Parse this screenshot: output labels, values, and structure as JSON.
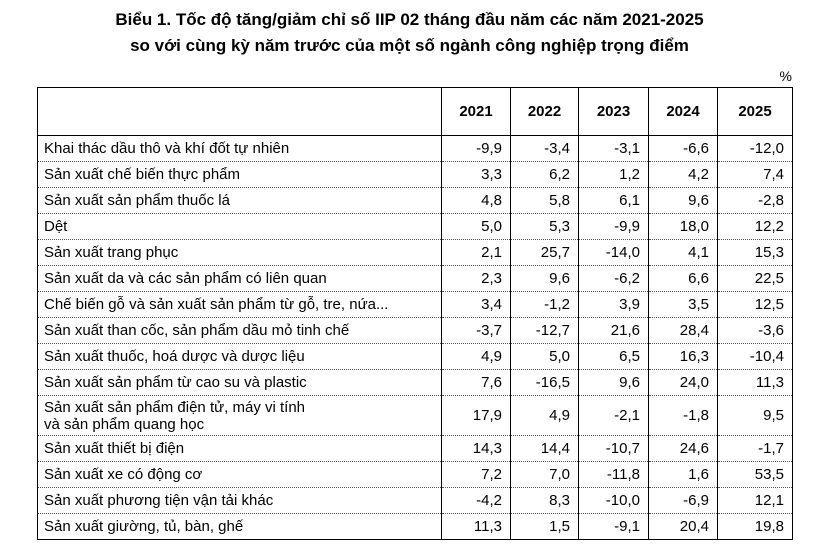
{
  "header": {
    "title": [
      "Biểu 1. Tốc độ tăng/giảm chỉ số IIP 02 tháng đầu năm các năm 2021-2025",
      "so với cùng kỳ năm trước của một số ngành công nghiệp trọng điểm"
    ],
    "unit": "%"
  },
  "table": {
    "columns": [
      "2021",
      "2022",
      "2023",
      "2024",
      "2025"
    ],
    "rows": [
      [
        "Khai thác dầu thô và khí đốt tự nhiên",
        "-9,9",
        "-3,4",
        "-3,1",
        "-6,6",
        "-12,0"
      ],
      [
        "Sản xuất chế biến thực phẩm",
        "3,3",
        "6,2",
        "1,2",
        "4,2",
        "7,4"
      ],
      [
        "Sản xuất sản phẩm thuốc lá",
        "4,8",
        "5,8",
        "6,1",
        "9,6",
        "-2,8"
      ],
      [
        "Dệt",
        "5,0",
        "5,3",
        "-9,9",
        "18,0",
        "12,2"
      ],
      [
        "Sản xuất trang phục",
        "2,1",
        "25,7",
        "-14,0",
        "4,1",
        "15,3"
      ],
      [
        "Sản xuất da và các sản phẩm có liên quan",
        "2,3",
        "9,6",
        "-6,2",
        "6,6",
        "22,5"
      ],
      [
        "Chế biến gỗ và sản xuất sản phẩm từ gỗ, tre, nứa...",
        "3,4",
        "-1,2",
        "3,9",
        "3,5",
        "12,5"
      ],
      [
        "Sản xuất than cốc, sản phẩm dầu mỏ tinh chế",
        "-3,7",
        "-12,7",
        "21,6",
        "28,4",
        "-3,6"
      ],
      [
        "Sản xuất thuốc, hoá dược và dược liệu",
        "4,9",
        "5,0",
        "6,5",
        "16,3",
        "-10,4"
      ],
      [
        "Sản xuất sản phẩm từ cao su và plastic",
        "7,6",
        "-16,5",
        "9,6",
        "24,0",
        "11,3"
      ],
      [
        "Sản xuất sản phẩm điện tử, máy vi tính\nvà sản phẩm quang học",
        "17,9",
        "4,9",
        "-2,1",
        "-1,8",
        "9,5"
      ],
      [
        "Sản xuất thiết bị điện",
        "14,3",
        "14,4",
        "-10,7",
        "24,6",
        "-1,7"
      ],
      [
        "Sản xuất xe có động cơ",
        "7,2",
        "7,0",
        "-11,8",
        "1,6",
        "53,5"
      ],
      [
        "Sản xuất phương tiện vận tải khác",
        "-4,2",
        "8,3",
        "-10,0",
        "-6,9",
        "12,1"
      ],
      [
        "Sản xuất giường, tủ, bàn, ghế",
        "11,3",
        "1,5",
        "-9,1",
        "20,4",
        "19,8"
      ]
    ]
  }
}
